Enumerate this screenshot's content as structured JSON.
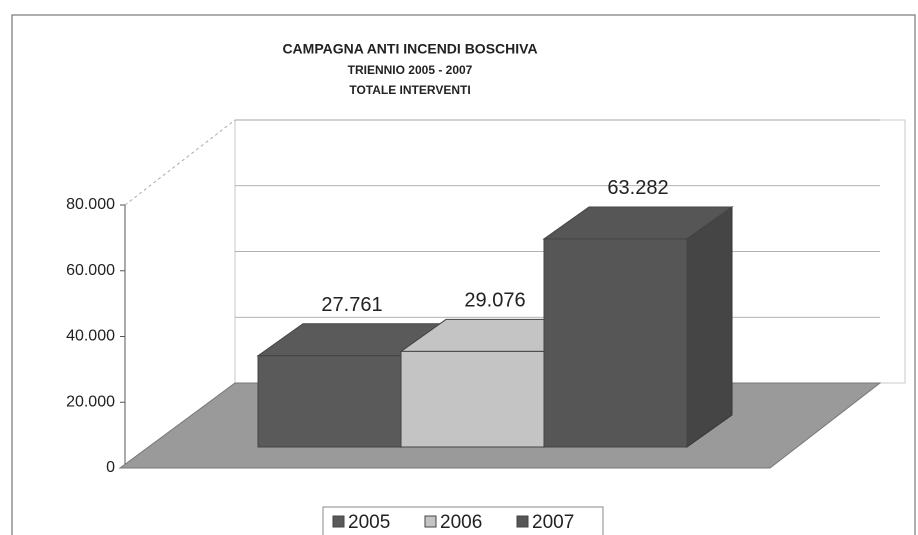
{
  "chart_data": {
    "type": "bar3d",
    "title": "CAMPAGNA ANTI INCENDI BOSCHIVA",
    "subtitle": "TRIENNIO 2005 - 2007",
    "subtitle2": "TOTALE INTERVENTI",
    "series": [
      {
        "name": "2005",
        "color": "#5a5a5a",
        "values": [
          27761
        ],
        "value_labels": [
          "27.761"
        ]
      },
      {
        "name": "2006",
        "color": "#c4c4c4",
        "values": [
          29076
        ],
        "value_labels": [
          "29.076"
        ]
      },
      {
        "name": "2007",
        "color": "#565656",
        "values": [
          63282
        ],
        "value_labels": [
          "63.282"
        ]
      }
    ],
    "ylim": [
      0,
      80000
    ],
    "yticks": [
      0,
      {
        "value": 20000,
        "label": "20.000"
      },
      {
        "value": 40000,
        "label": "40.000"
      },
      {
        "value": 60000,
        "label": "60.000"
      },
      {
        "value": 80000,
        "label": "80.000"
      }
    ],
    "grid": true,
    "legend": "bottom"
  }
}
